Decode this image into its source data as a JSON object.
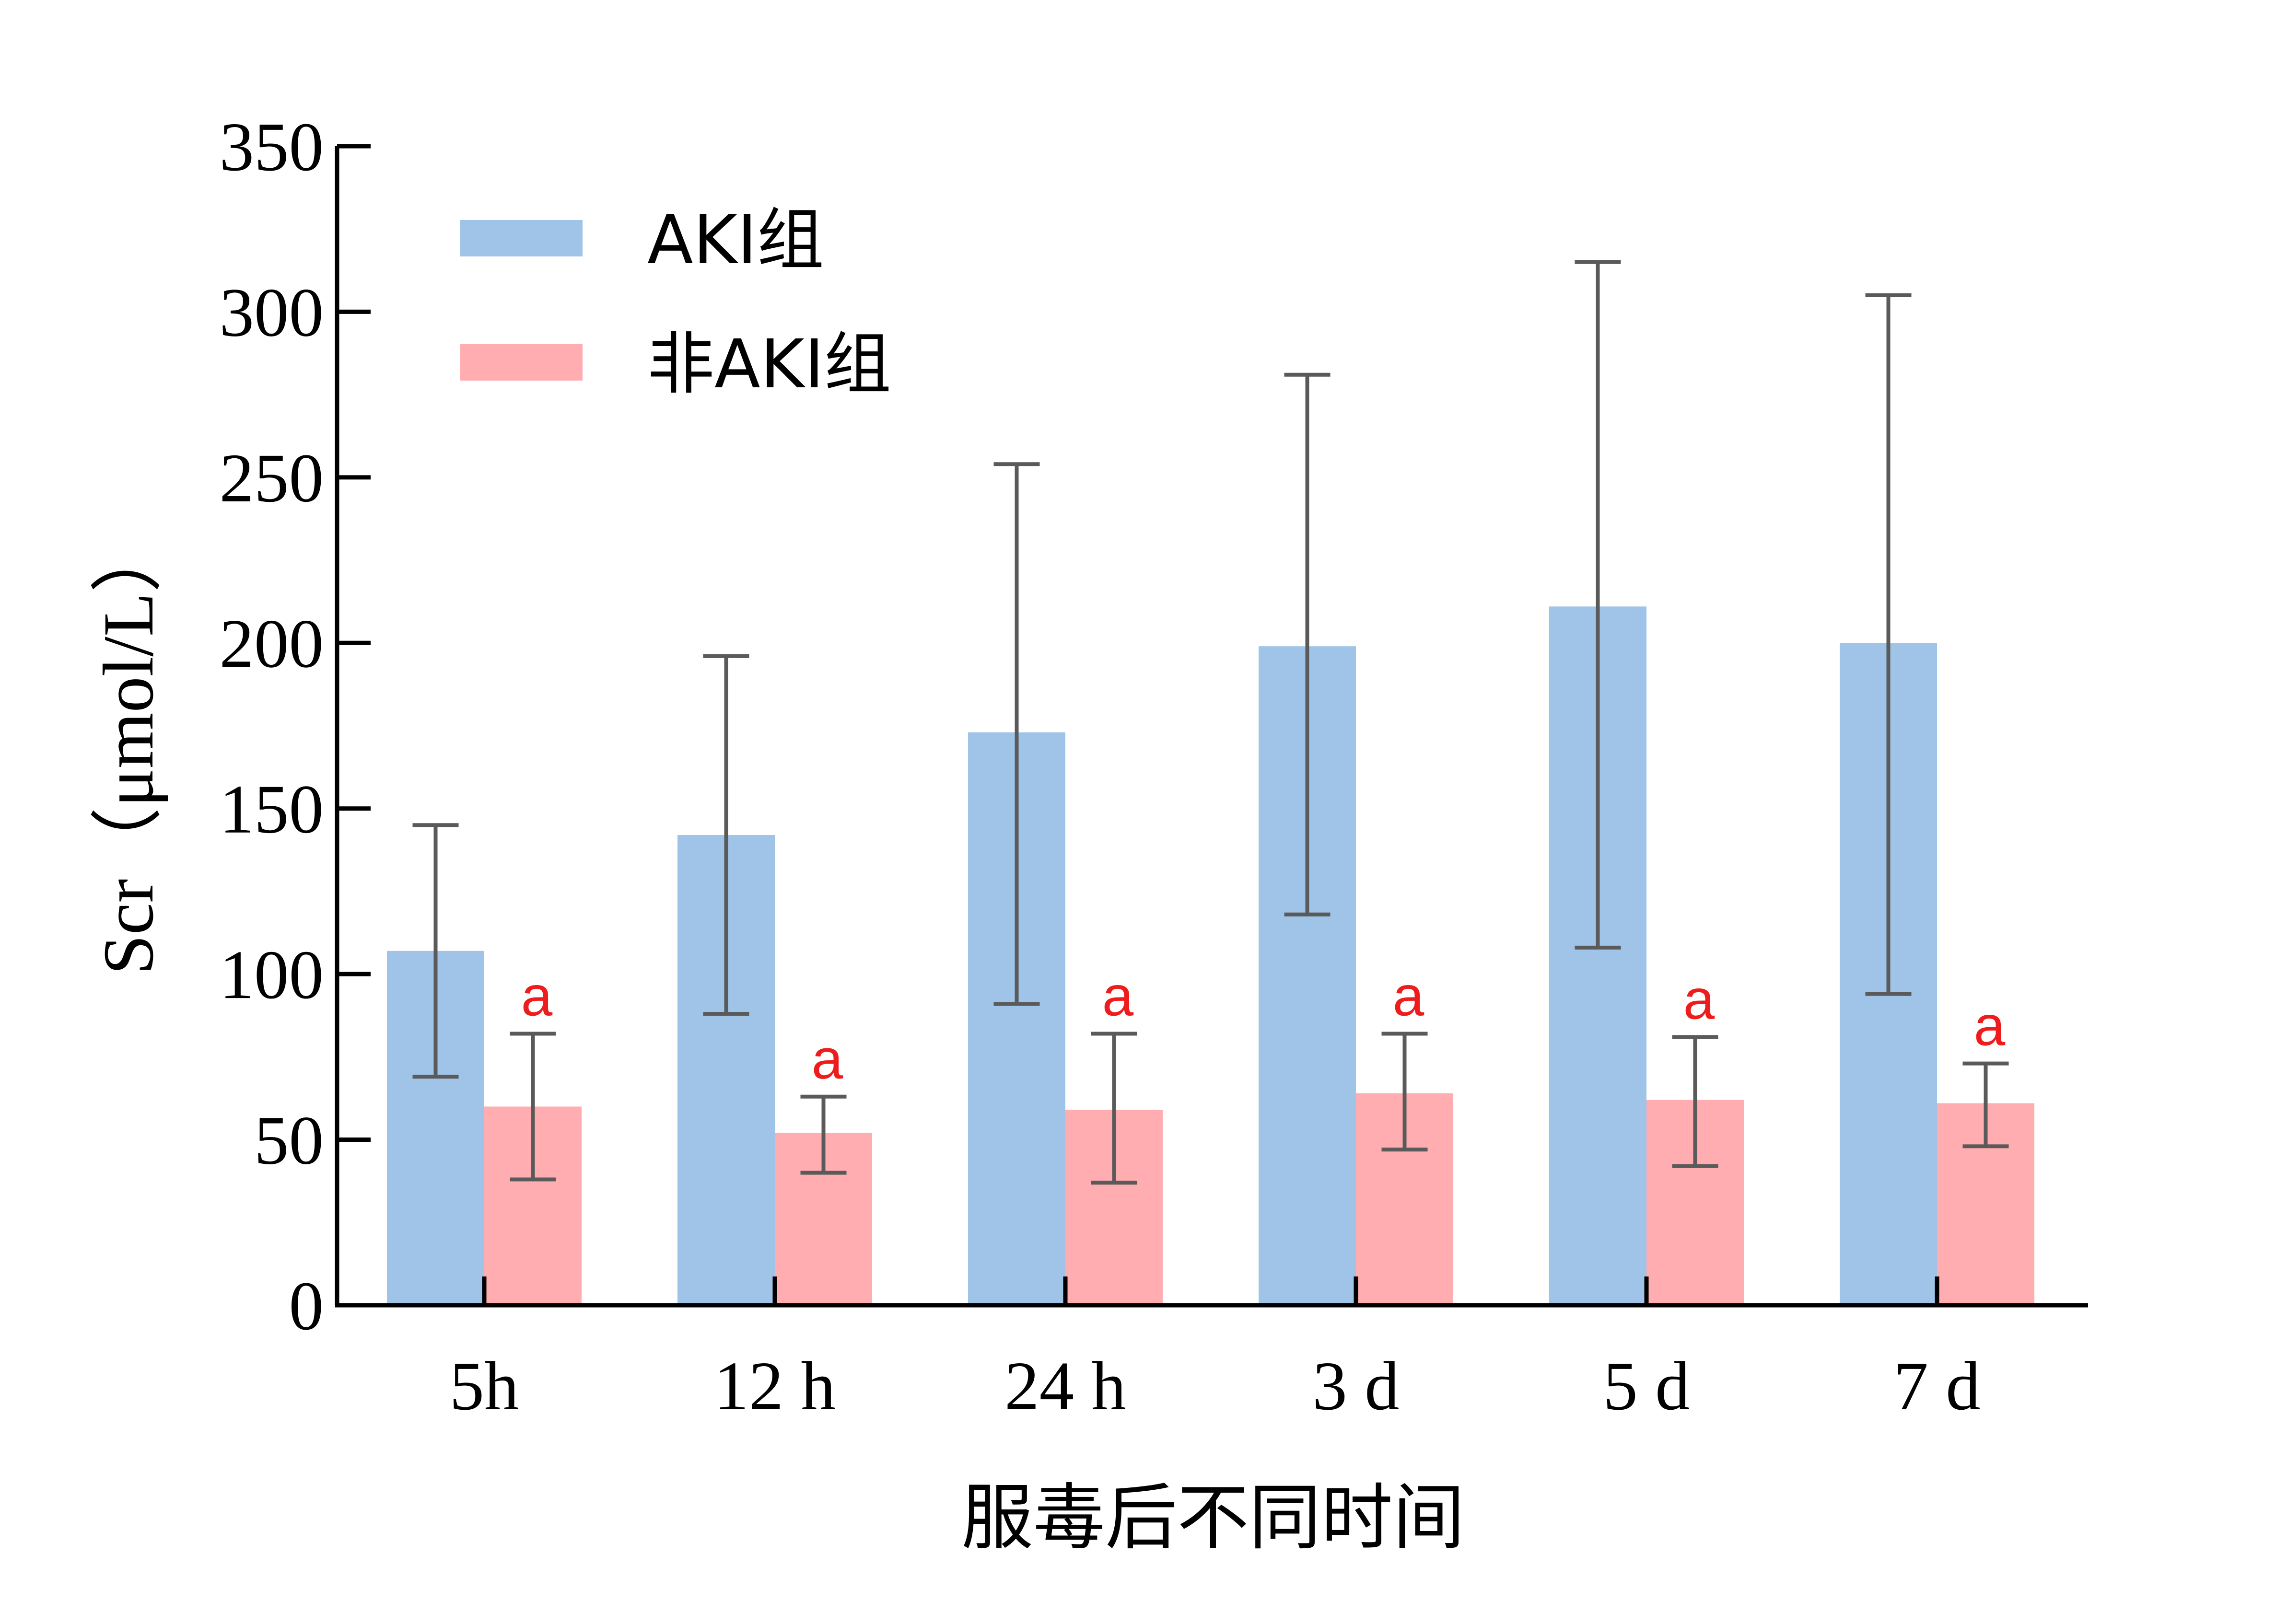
{
  "chart_data": {
    "type": "bar",
    "title": "",
    "xlabel": "服毒后不同时间",
    "ylabel": "Scr（μmol/L）",
    "categories": [
      "5h",
      "12 h",
      "24 h",
      "3 d",
      "5 d",
      "7 d"
    ],
    "ylim": [
      0,
      350
    ],
    "yticks": [
      0,
      50,
      100,
      150,
      200,
      250,
      300,
      350
    ],
    "grid": false,
    "legend_position": "top-left",
    "series": [
      {
        "name": "AKI组",
        "color": "#9fc4e7",
        "values": [
          107,
          142,
          173,
          199,
          211,
          200
        ],
        "error_low": [
          69,
          88,
          91,
          118,
          108,
          94
        ],
        "error_high": [
          145,
          196,
          254,
          281,
          315,
          305
        ]
      },
      {
        "name": "非AKI组",
        "color": "#ffadb0",
        "values": [
          60,
          52,
          59,
          64,
          62,
          61
        ],
        "error_low": [
          38,
          40,
          37,
          47,
          42,
          48
        ],
        "error_high": [
          82,
          63,
          82,
          82,
          81,
          73
        ],
        "annotations": [
          "a",
          "a",
          "a",
          "a",
          "a",
          "a"
        ],
        "annotation_color": "#ee1c1c"
      }
    ],
    "error_bar_color": "#5a5a5a"
  }
}
